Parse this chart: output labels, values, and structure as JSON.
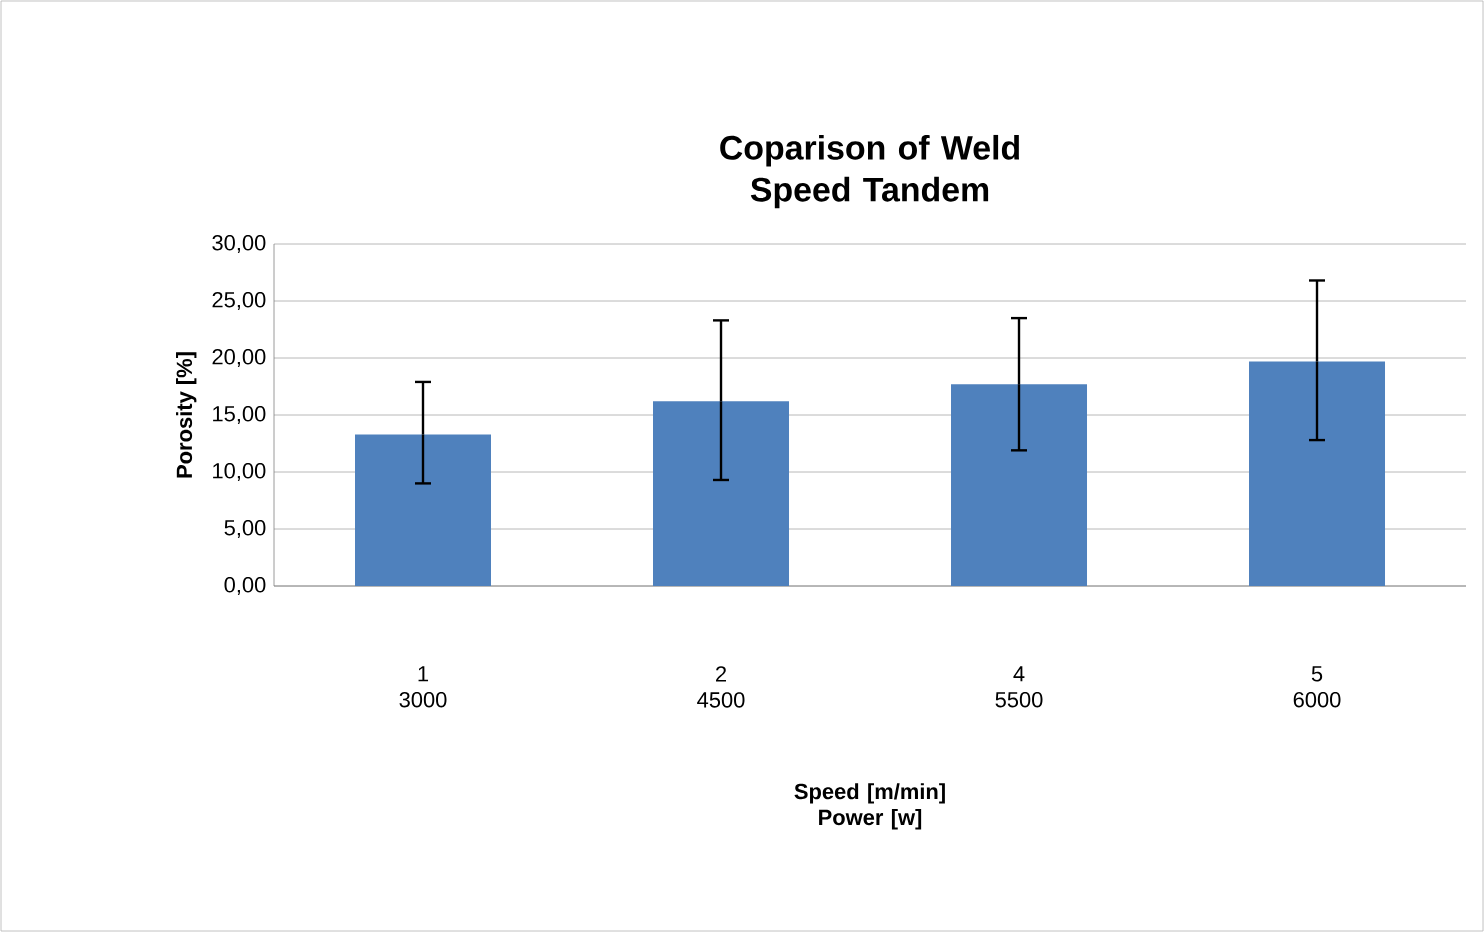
{
  "chart_data": {
    "type": "bar",
    "title": "Coparison of Weld Speed Tandem",
    "xlabel": "Speed [m/min] Power [w]",
    "ylabel": "Porosity [%]",
    "categories": [
      "1 3000",
      "2 4500",
      "4 5500",
      "5 6000"
    ],
    "values": [
      13.3,
      16.2,
      17.7,
      19.7
    ],
    "errors": [
      [
        9.0,
        17.9
      ],
      [
        9.3,
        23.3
      ],
      [
        11.9,
        23.5
      ],
      [
        12.8,
        26.8
      ]
    ],
    "color": "#4f81bd",
    "ylim": [
      0,
      30
    ],
    "yticks": [
      {
        "value": 0,
        "label": "0,00"
      },
      {
        "value": 5,
        "label": "5,00"
      },
      {
        "value": 10,
        "label": "10,00"
      },
      {
        "value": 15,
        "label": "15,00"
      },
      {
        "value": 20,
        "label": "20,00"
      },
      {
        "value": 25,
        "label": "25,00"
      },
      {
        "value": 30,
        "label": "30,00"
      }
    ],
    "grid": "y"
  }
}
